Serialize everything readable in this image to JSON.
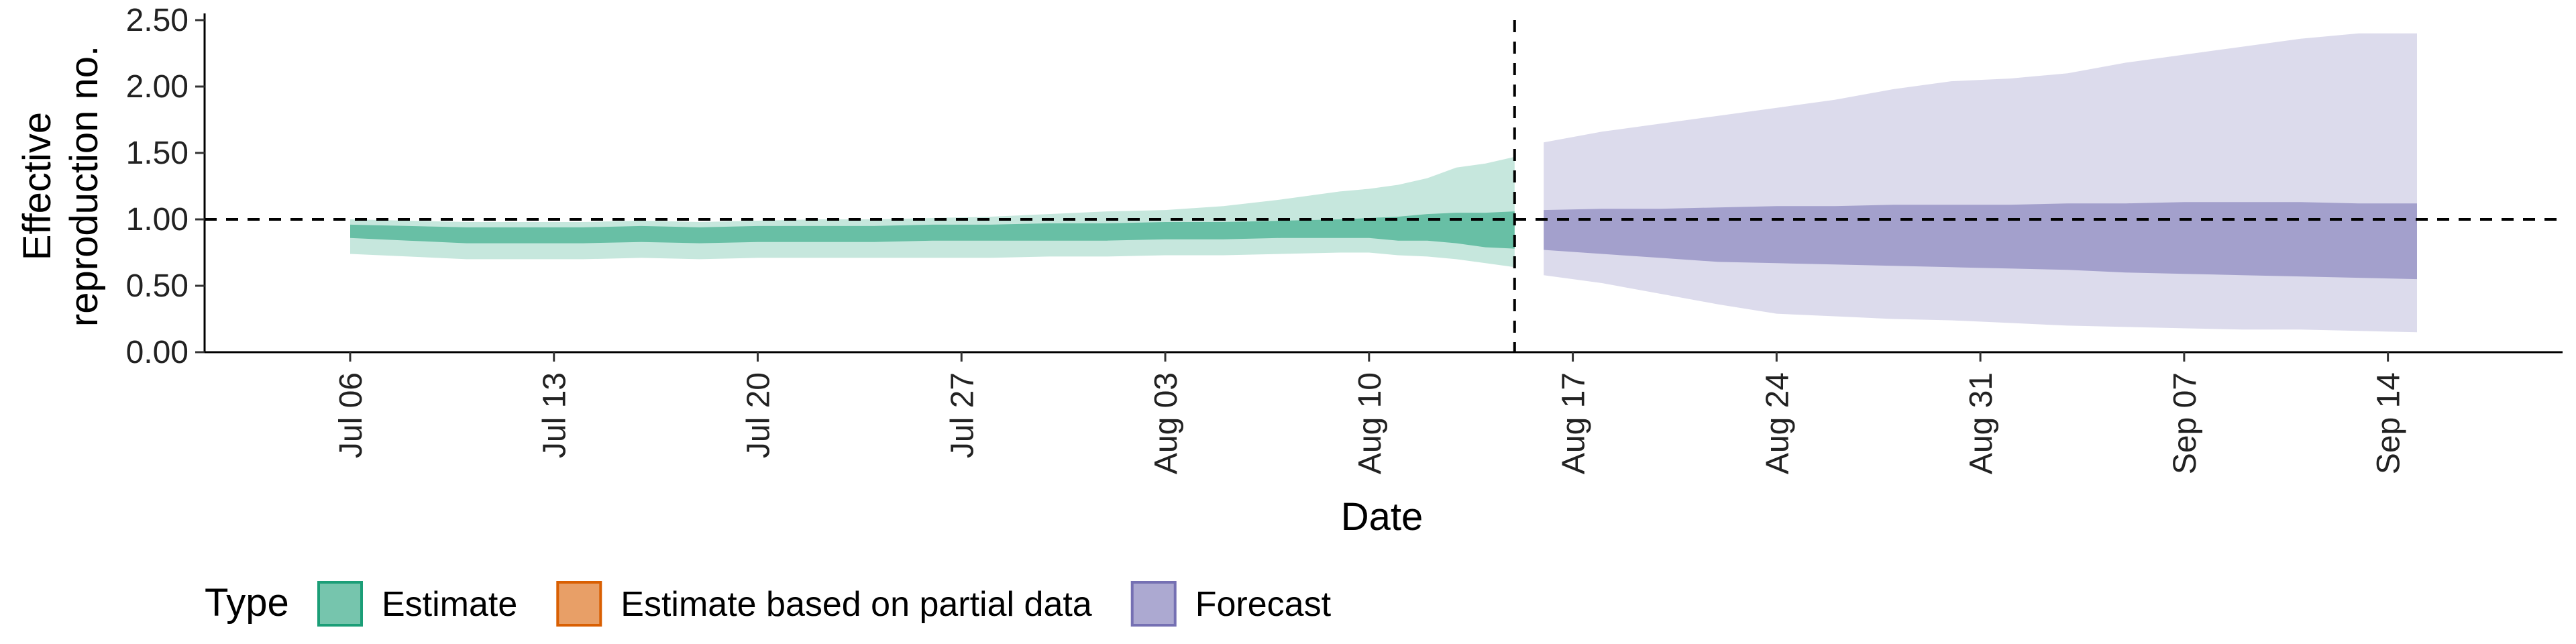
{
  "chart_data": {
    "type": "area",
    "xlabel": "Date",
    "ylabel": "Effective reproduction no.",
    "ylabel_lines": [
      "Effective",
      "reproduction no."
    ],
    "ylim": [
      0,
      2.5
    ],
    "y_ticks": [
      {
        "value": 0,
        "label": "0.00"
      },
      {
        "value": 0.5,
        "label": "0.50"
      },
      {
        "value": 1.0,
        "label": "1.00"
      },
      {
        "value": 1.5,
        "label": "1.50"
      },
      {
        "value": 2.0,
        "label": "2.00"
      },
      {
        "value": 2.5,
        "label": "2.50"
      }
    ],
    "xlim": [
      "2020-07-01",
      "2020-09-20"
    ],
    "x_ticks": [
      {
        "value": "2020-07-06",
        "label": "Jul 06"
      },
      {
        "value": "2020-07-13",
        "label": "Jul 13"
      },
      {
        "value": "2020-07-20",
        "label": "Jul 20"
      },
      {
        "value": "2020-07-27",
        "label": "Jul 27"
      },
      {
        "value": "2020-08-03",
        "label": "Aug 03"
      },
      {
        "value": "2020-08-10",
        "label": "Aug 10"
      },
      {
        "value": "2020-08-17",
        "label": "Aug 17"
      },
      {
        "value": "2020-08-24",
        "label": "Aug 24"
      },
      {
        "value": "2020-08-31",
        "label": "Aug 31"
      },
      {
        "value": "2020-09-07",
        "label": "Sep 07"
      },
      {
        "value": "2020-09-14",
        "label": "Sep 14"
      }
    ],
    "reference_hline": 1.0,
    "reference_vline": "2020-08-15",
    "grid": false,
    "legend": {
      "title": "Type",
      "position": "bottom",
      "items": [
        {
          "label": "Estimate",
          "color": "#1b9e77"
        },
        {
          "label": "Estimate based on partial data",
          "color": "#d95f02"
        },
        {
          "label": "Forecast",
          "color": "#7570b3"
        }
      ]
    },
    "series": [
      {
        "name": "Estimate",
        "color": "#1b9e77",
        "x": [
          "2020-07-06",
          "2020-07-08",
          "2020-07-10",
          "2020-07-12",
          "2020-07-14",
          "2020-07-16",
          "2020-07-18",
          "2020-07-20",
          "2020-07-22",
          "2020-07-24",
          "2020-07-26",
          "2020-07-28",
          "2020-07-30",
          "2020-08-01",
          "2020-08-03",
          "2020-08-05",
          "2020-08-07",
          "2020-08-09",
          "2020-08-10",
          "2020-08-11",
          "2020-08-12",
          "2020-08-13",
          "2020-08-14",
          "2020-08-15"
        ],
        "outer_lower": [
          0.74,
          0.72,
          0.7,
          0.7,
          0.7,
          0.71,
          0.7,
          0.71,
          0.71,
          0.71,
          0.71,
          0.71,
          0.72,
          0.72,
          0.73,
          0.73,
          0.74,
          0.75,
          0.75,
          0.73,
          0.72,
          0.7,
          0.67,
          0.64
        ],
        "outer_upper": [
          1.0,
          0.99,
          0.98,
          0.98,
          0.98,
          0.99,
          0.98,
          0.99,
          1.0,
          1.0,
          1.01,
          1.02,
          1.04,
          1.06,
          1.07,
          1.1,
          1.15,
          1.21,
          1.23,
          1.26,
          1.31,
          1.39,
          1.42,
          1.47
        ],
        "inner_lower": [
          0.86,
          0.84,
          0.82,
          0.82,
          0.82,
          0.83,
          0.82,
          0.83,
          0.83,
          0.83,
          0.84,
          0.84,
          0.84,
          0.84,
          0.85,
          0.85,
          0.86,
          0.86,
          0.86,
          0.84,
          0.84,
          0.82,
          0.79,
          0.78
        ],
        "inner_upper": [
          0.96,
          0.95,
          0.94,
          0.94,
          0.94,
          0.95,
          0.94,
          0.95,
          0.95,
          0.95,
          0.96,
          0.96,
          0.97,
          0.97,
          0.98,
          0.98,
          0.99,
          1.0,
          1.01,
          1.02,
          1.04,
          1.05,
          1.05,
          1.06
        ]
      },
      {
        "name": "Forecast",
        "color": "#7570b3",
        "x": [
          "2020-08-16",
          "2020-08-18",
          "2020-08-20",
          "2020-08-22",
          "2020-08-24",
          "2020-08-26",
          "2020-08-28",
          "2020-08-30",
          "2020-09-01",
          "2020-09-03",
          "2020-09-05",
          "2020-09-07",
          "2020-09-09",
          "2020-09-11",
          "2020-09-13",
          "2020-09-15"
        ],
        "outer_lower": [
          0.58,
          0.52,
          0.44,
          0.36,
          0.29,
          0.27,
          0.25,
          0.24,
          0.22,
          0.2,
          0.19,
          0.18,
          0.17,
          0.17,
          0.16,
          0.15
        ],
        "outer_upper": [
          1.58,
          1.66,
          1.72,
          1.78,
          1.84,
          1.9,
          1.98,
          2.04,
          2.06,
          2.1,
          2.18,
          2.24,
          2.3,
          2.36,
          2.4,
          2.4
        ],
        "inner_lower": [
          0.77,
          0.74,
          0.71,
          0.68,
          0.67,
          0.66,
          0.65,
          0.64,
          0.63,
          0.62,
          0.6,
          0.59,
          0.58,
          0.57,
          0.56,
          0.55
        ],
        "inner_upper": [
          1.07,
          1.08,
          1.08,
          1.09,
          1.1,
          1.1,
          1.11,
          1.11,
          1.11,
          1.12,
          1.12,
          1.13,
          1.13,
          1.13,
          1.12,
          1.12
        ]
      }
    ]
  }
}
